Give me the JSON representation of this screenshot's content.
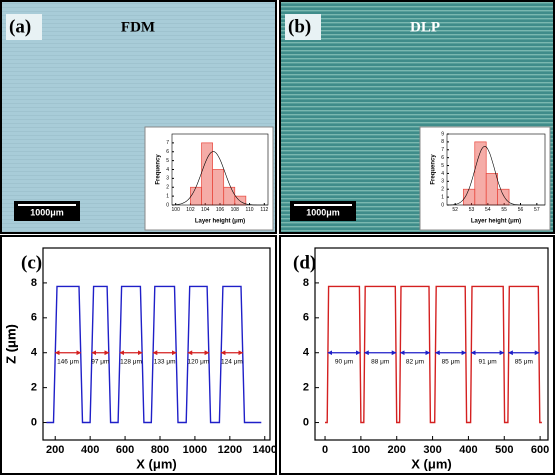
{
  "images": [
    {
      "label": "(a)",
      "title": "FDM",
      "scale_bar": "1000μm"
    },
    {
      "label": "(b)",
      "title": "DLP",
      "scale_bar": "1000μm"
    }
  ],
  "chart_data": [
    {
      "type": "histogram",
      "bins": [
        102,
        103.5,
        105,
        106.5,
        108,
        109.5
      ],
      "values": [
        2,
        7,
        4,
        2,
        1
      ],
      "color": "#e8463c",
      "xlabel": "Layer height (μm)",
      "ylabel": "Frequency",
      "xlim": [
        99.5,
        112.5
      ],
      "xticks": [
        100,
        102,
        104,
        106,
        108,
        110,
        112
      ],
      "ylim": [
        0,
        8
      ],
      "yticks": [
        0,
        1,
        2,
        3,
        4,
        5,
        6,
        7
      ]
    },
    {
      "type": "histogram",
      "bins": [
        52.5,
        53.2,
        53.9,
        54.6,
        55.3
      ],
      "values": [
        2,
        8,
        4,
        2
      ],
      "color": "#e8463c",
      "xlabel": "Layer height (μm)",
      "ylabel": "Frequency",
      "xlim": [
        51.5,
        57.5
      ],
      "xticks": [
        52,
        53,
        54,
        55,
        56,
        57
      ],
      "ylim": [
        0,
        9
      ],
      "yticks": [
        0,
        1,
        2,
        3,
        4,
        5,
        6,
        7,
        8,
        9
      ]
    },
    {
      "type": "line",
      "label": "(c)",
      "color": "#1f1fc8",
      "annotation_color": "#d42020",
      "x": [
        150,
        190,
        210,
        336,
        356,
        400,
        420,
        497,
        517,
        560,
        580,
        688,
        708,
        750,
        770,
        883,
        903,
        950,
        970,
        1070,
        1090,
        1140,
        1160,
        1264,
        1284,
        1380
      ],
      "values": [
        0,
        0,
        7.8,
        7.8,
        0,
        0,
        7.8,
        7.8,
        0,
        0,
        7.8,
        7.8,
        0,
        0,
        7.8,
        7.8,
        0,
        0,
        7.8,
        7.8,
        0,
        0,
        7.8,
        7.8,
        0,
        0
      ],
      "xlabel": "X (μm)",
      "ylabel": "Z (μm)",
      "xlim": [
        130,
        1430
      ],
      "xticks": [
        200,
        400,
        600,
        800,
        1000,
        1200,
        1400
      ],
      "ylim": [
        -1,
        10
      ],
      "yticks": [
        0,
        2,
        4,
        6,
        8
      ],
      "annotations": [
        {
          "text": "146 μm",
          "x1": 200,
          "x2": 346,
          "y": 4
        },
        {
          "text": "97 μm",
          "x1": 410,
          "x2": 507,
          "y": 4
        },
        {
          "text": "128 μm",
          "x1": 570,
          "x2": 698,
          "y": 4
        },
        {
          "text": "133 μm",
          "x1": 760,
          "x2": 893,
          "y": 4
        },
        {
          "text": "120 μm",
          "x1": 960,
          "x2": 1080,
          "y": 4
        },
        {
          "text": "124 μm",
          "x1": 1150,
          "x2": 1274,
          "y": 4
        }
      ]
    },
    {
      "type": "line",
      "label": "(d)",
      "color": "#d42020",
      "annotation_color": "#1f1fc8",
      "x": [
        0,
        6,
        10,
        96,
        100,
        108,
        112,
        196,
        200,
        208,
        212,
        290,
        294,
        306,
        310,
        391,
        395,
        406,
        410,
        497,
        501,
        510,
        514,
        595,
        599,
        605
      ],
      "values": [
        0,
        0,
        7.8,
        7.8,
        0,
        0,
        7.8,
        7.8,
        0,
        0,
        7.8,
        7.8,
        0,
        0,
        7.8,
        7.8,
        0,
        0,
        7.8,
        7.8,
        0,
        0,
        7.8,
        7.8,
        0,
        0
      ],
      "xlabel": "X (μm)",
      "ylabel": "Z (μm)",
      "xlim": [
        -28,
        622
      ],
      "xticks": [
        0,
        100,
        200,
        300,
        400,
        500,
        600
      ],
      "ylim": [
        -1,
        10
      ],
      "yticks": [
        0,
        2,
        4,
        6,
        8
      ],
      "annotations": [
        {
          "text": "90 μm",
          "x1": 8,
          "x2": 98,
          "y": 4
        },
        {
          "text": "88 μm",
          "x1": 110,
          "x2": 198,
          "y": 4
        },
        {
          "text": "82 μm",
          "x1": 210,
          "x2": 292,
          "y": 4
        },
        {
          "text": "85 μm",
          "x1": 308,
          "x2": 393,
          "y": 4
        },
        {
          "text": "91 μm",
          "x1": 408,
          "x2": 499,
          "y": 4
        },
        {
          "text": "85 μm",
          "x1": 512,
          "x2": 597,
          "y": 4
        }
      ]
    }
  ]
}
